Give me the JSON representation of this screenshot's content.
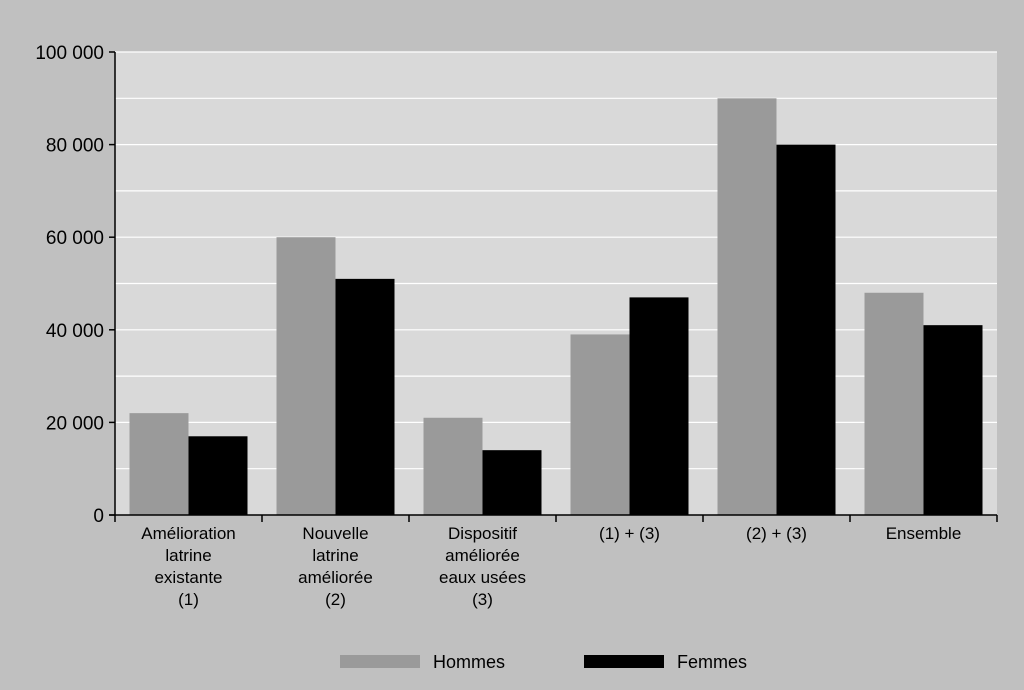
{
  "chart_data": {
    "type": "bar",
    "title": "",
    "xlabel": "",
    "ylabel": "",
    "ylim": [
      0,
      100000
    ],
    "yticks": [
      0,
      20000,
      40000,
      60000,
      80000,
      100000
    ],
    "ytick_labels": [
      "0",
      "20 000",
      "40 000",
      "60 000",
      "80 000",
      "100 000"
    ],
    "grid": true,
    "legend_position": "bottom",
    "categories": [
      [
        "Amélioration",
        "latrine",
        "existante",
        "(1)"
      ],
      [
        "Nouvelle",
        "latrine",
        "améliorée",
        "(2)"
      ],
      [
        "Dispositif",
        "améliorée",
        "eaux usées",
        "(3)"
      ],
      [
        "(1) + (3)"
      ],
      [
        "(2) + (3)"
      ],
      [
        "Ensemble"
      ]
    ],
    "series": [
      {
        "name": "Hommes",
        "color": "#9a9a9a",
        "values": [
          22000,
          60000,
          21000,
          39000,
          90000,
          48000
        ]
      },
      {
        "name": "Femmes",
        "color": "#000000",
        "values": [
          17000,
          51000,
          14000,
          47000,
          80000,
          41000
        ]
      }
    ],
    "colors": {
      "background": "#c0c0c0",
      "plot_background": "#d9d9d9",
      "grid": "#ffffff"
    }
  }
}
